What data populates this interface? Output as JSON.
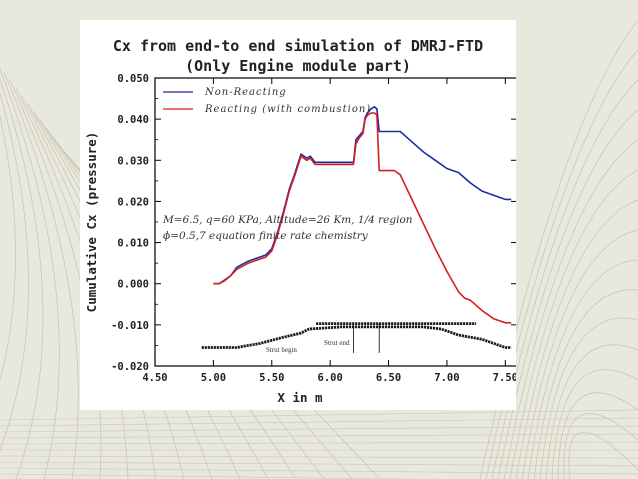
{
  "slide": {
    "title_line1": "Cx from end-to end simulation of DMRJ-FTD",
    "title_line2": "(Only Engine module part)",
    "background_color": "#e9e8dd",
    "pattern_color": "#c9c7b6"
  },
  "chart_data": {
    "type": "line",
    "title": "Cx from end-to end simulation of DMRJ-FTD (Only Engine module part)",
    "xlabel": "X in m",
    "ylabel": "Cumulative Cx (pressure)",
    "xlim": [
      4.5,
      7.6
    ],
    "ylim": [
      -0.02,
      0.05
    ],
    "xticks": [
      "4.50",
      "5.00",
      "5.50",
      "6.00",
      "6.50",
      "7.00",
      "7.50"
    ],
    "xtick_values": [
      4.5,
      5.0,
      5.5,
      6.0,
      6.5,
      7.0,
      7.5
    ],
    "yticks": [
      "0.050",
      "0.040",
      "0.030",
      "0.020",
      "0.010",
      "0.000",
      "-0.010",
      "-0.020"
    ],
    "ytick_values": [
      0.05,
      0.04,
      0.03,
      0.02,
      0.01,
      0.0,
      -0.01,
      -0.02
    ],
    "legend_position": "top-left",
    "annotation_line1": "M=6.5, q=60 KPa, Altitude=26 Km, 1/4 region",
    "annotation_line2": "ϕ=0.5,7 equation finite rate chemistry",
    "strut_begin_label": "Strut begin",
    "strut_end_label": "Strut end",
    "strut_begin_x": 6.2,
    "strut_end_x": 6.42,
    "series": [
      {
        "name": "Non-Reacting",
        "color": "#1f2aa8",
        "x": [
          5.0,
          5.05,
          5.1,
          5.15,
          5.2,
          5.3,
          5.4,
          5.45,
          5.5,
          5.55,
          5.6,
          5.65,
          5.7,
          5.75,
          5.8,
          5.83,
          5.87,
          5.9,
          6.0,
          6.1,
          6.2,
          6.22,
          6.25,
          6.28,
          6.3,
          6.32,
          6.35,
          6.38,
          6.4,
          6.42,
          6.45,
          6.6,
          6.7,
          6.8,
          6.9,
          7.0,
          7.1,
          7.2,
          7.3,
          7.4,
          7.5,
          7.55
        ],
        "y": [
          0.0,
          0.0,
          0.001,
          0.002,
          0.004,
          0.0055,
          0.0065,
          0.007,
          0.0085,
          0.0125,
          0.0175,
          0.023,
          0.027,
          0.0315,
          0.0305,
          0.031,
          0.0295,
          0.0295,
          0.0295,
          0.0295,
          0.0295,
          0.035,
          0.036,
          0.037,
          0.0405,
          0.0415,
          0.0425,
          0.043,
          0.0425,
          0.037,
          0.037,
          0.037,
          0.0345,
          0.032,
          0.03,
          0.028,
          0.027,
          0.0245,
          0.0225,
          0.0215,
          0.0205,
          0.0205
        ]
      },
      {
        "name": "Reacting (with combustion)",
        "color": "#d61e1e",
        "x": [
          5.0,
          5.05,
          5.1,
          5.15,
          5.2,
          5.3,
          5.4,
          5.45,
          5.5,
          5.55,
          5.6,
          5.65,
          5.7,
          5.75,
          5.8,
          5.83,
          5.87,
          5.9,
          6.0,
          6.1,
          6.2,
          6.22,
          6.25,
          6.28,
          6.3,
          6.32,
          6.35,
          6.38,
          6.4,
          6.42,
          6.45,
          6.55,
          6.6,
          6.7,
          6.8,
          6.9,
          7.0,
          7.1,
          7.15,
          7.2,
          7.3,
          7.4,
          7.5,
          7.55
        ],
        "y": [
          0.0,
          0.0,
          0.0008,
          0.002,
          0.0035,
          0.005,
          0.006,
          0.0065,
          0.008,
          0.012,
          0.017,
          0.0225,
          0.0265,
          0.031,
          0.03,
          0.0305,
          0.029,
          0.029,
          0.029,
          0.029,
          0.029,
          0.034,
          0.0355,
          0.0365,
          0.04,
          0.041,
          0.0415,
          0.0415,
          0.041,
          0.0275,
          0.0275,
          0.0275,
          0.0265,
          0.0205,
          0.0145,
          0.0085,
          0.003,
          -0.002,
          -0.0035,
          -0.004,
          -0.0065,
          -0.0085,
          -0.0095,
          -0.0095
        ]
      },
      {
        "name": "",
        "color": "#1a1a1a",
        "x": [
          4.9,
          5.0,
          5.2,
          5.4,
          5.6,
          5.75,
          5.82,
          6.1,
          6.2,
          6.42,
          6.55,
          6.8,
          6.95,
          7.1,
          7.3,
          7.4,
          7.5,
          7.55
        ],
        "y": [
          -0.0155,
          -0.0155,
          -0.0155,
          -0.0145,
          -0.013,
          -0.012,
          -0.011,
          -0.0105,
          -0.0105,
          -0.0105,
          -0.0105,
          -0.0105,
          -0.011,
          -0.0125,
          -0.0135,
          -0.0145,
          -0.0155,
          -0.0155
        ]
      },
      {
        "name": "",
        "color": "#1a1a1a",
        "x": [
          5.88,
          6.0,
          6.2,
          6.42,
          6.6,
          6.8,
          7.0,
          7.1,
          7.2,
          7.25
        ],
        "y": [
          -0.0097,
          -0.0097,
          -0.0097,
          -0.0097,
          -0.0097,
          -0.0097,
          -0.0097,
          -0.0097,
          -0.0097,
          -0.0097
        ]
      }
    ]
  }
}
